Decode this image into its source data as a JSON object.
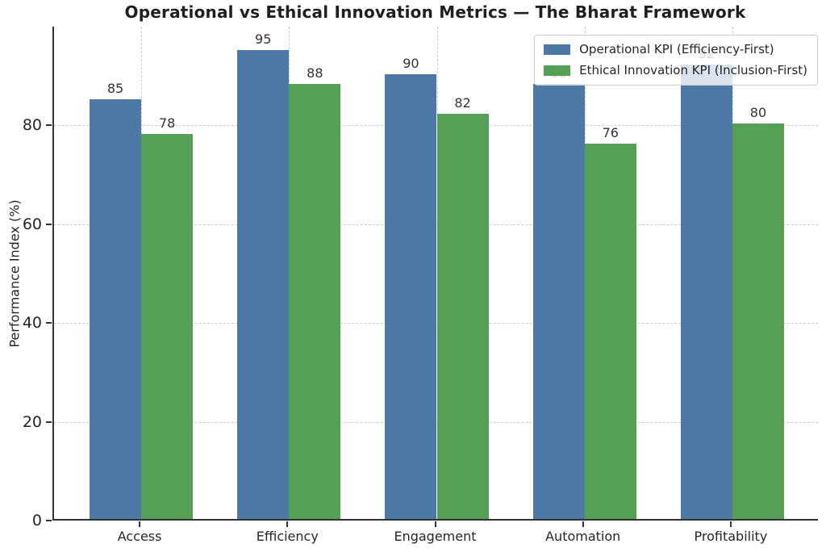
{
  "chart_data": {
    "type": "bar",
    "title": "Operational vs Ethical Innovation Metrics — The Bharat Framework",
    "categories": [
      "Access",
      "Efficiency",
      "Engagement",
      "Automation",
      "Profitability"
    ],
    "series": [
      {
        "name": "Operational KPI (Efficiency-First)",
        "color": "#4d79a7",
        "values": [
          85,
          95,
          90,
          88,
          92
        ]
      },
      {
        "name": "Ethical Innovation KPI (Inclusion-First)",
        "color": "#55a055",
        "values": [
          78,
          88,
          82,
          76,
          80
        ]
      }
    ],
    "xlabel": "",
    "ylabel": "Performance Index (%)",
    "ylim": [
      0,
      100
    ],
    "yticks": [
      0,
      20,
      40,
      60,
      80
    ],
    "grid": true,
    "grid_style": "dashed",
    "bar_value_labels_shown": true,
    "legend_position": "upper right",
    "colors": {
      "spine": "#333333",
      "gridline": "#cccccc",
      "text": "#262626",
      "bar_label": "#333333",
      "legend_background": "rgba(255,255,255,0.8)",
      "figure_background": "#ffffff"
    }
  }
}
